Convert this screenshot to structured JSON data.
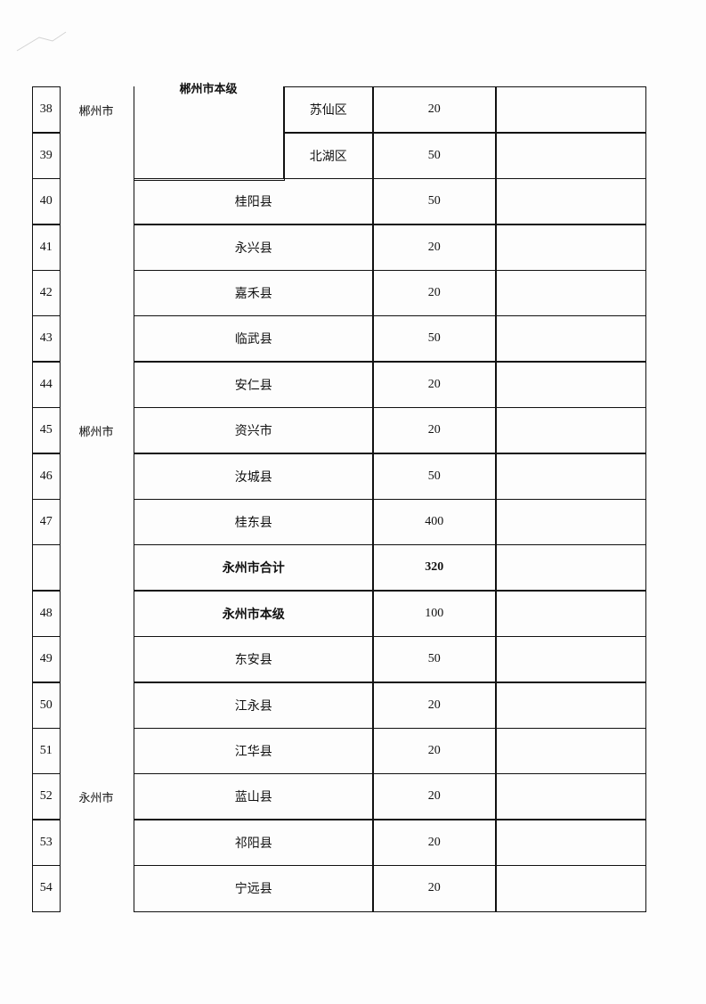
{
  "table": {
    "merged_header_cell": "郴州市本级",
    "regions": [
      {
        "label": "郴州市",
        "row": 0
      },
      {
        "label": "郴州市",
        "row": 7
      },
      {
        "label": "永州市",
        "row": 15
      }
    ],
    "rows": [
      {
        "num": "38",
        "name": "苏仙区",
        "value": "20",
        "remark": "",
        "sub": true
      },
      {
        "num": "39",
        "name": "北湖区",
        "value": "50",
        "remark": "",
        "sub": true
      },
      {
        "num": "40",
        "name": "桂阳县",
        "value": "50",
        "remark": ""
      },
      {
        "num": "41",
        "name": "永兴县",
        "value": "20",
        "remark": ""
      },
      {
        "num": "42",
        "name": "嘉禾县",
        "value": "20",
        "remark": ""
      },
      {
        "num": "43",
        "name": "临武县",
        "value": "50",
        "remark": ""
      },
      {
        "num": "44",
        "name": "安仁县",
        "value": "20",
        "remark": ""
      },
      {
        "num": "45",
        "name": "资兴市",
        "value": "20",
        "remark": ""
      },
      {
        "num": "46",
        "name": "汝城县",
        "value": "50",
        "remark": ""
      },
      {
        "num": "47",
        "name": "桂东县",
        "value": "400",
        "remark": ""
      },
      {
        "num": "",
        "name": "永州市合计",
        "value": "320",
        "remark": "",
        "bold_name": true,
        "bold_value": true
      },
      {
        "num": "48",
        "name": "永州市本级",
        "value": "100",
        "remark": "",
        "bold_name": true
      },
      {
        "num": "49",
        "name": "东安县",
        "value": "50",
        "remark": ""
      },
      {
        "num": "50",
        "name": "江永县",
        "value": "20",
        "remark": ""
      },
      {
        "num": "51",
        "name": "江华县",
        "value": "20",
        "remark": ""
      },
      {
        "num": "52",
        "name": "蓝山县",
        "value": "20",
        "remark": ""
      },
      {
        "num": "53",
        "name": "祁阳县",
        "value": "20",
        "remark": ""
      },
      {
        "num": "54",
        "name": "宁远县",
        "value": "20",
        "remark": ""
      }
    ]
  }
}
